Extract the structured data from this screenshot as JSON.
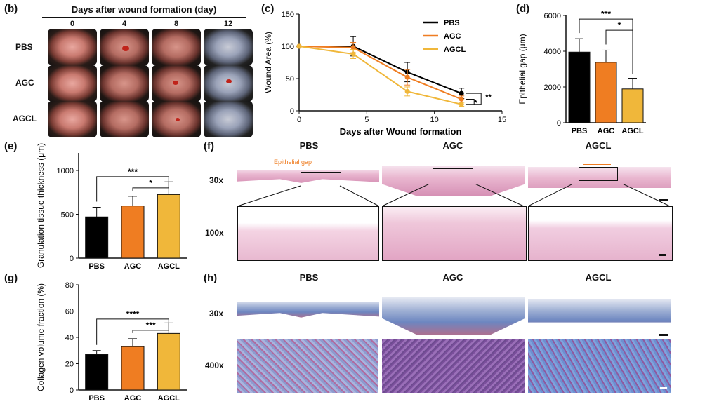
{
  "panels": {
    "b": {
      "label": "(b)",
      "title": "Days after wound formation (day)",
      "days": [
        "0",
        "4",
        "8",
        "12"
      ],
      "groups": [
        "PBS",
        "AGC",
        "AGCL"
      ]
    },
    "f": {
      "label": "(f)",
      "groups": [
        "PBS",
        "AGC",
        "AGCL"
      ],
      "rows": [
        "30x",
        "100x"
      ],
      "annotation": "Epithelial gap"
    },
    "h": {
      "label": "(h)",
      "groups": [
        "PBS",
        "AGC",
        "AGCL"
      ],
      "rows": [
        "30x",
        "400x"
      ]
    }
  },
  "colors": {
    "PBS": "#000000",
    "AGC": "#ef7d22",
    "AGCL": "#f0b73a"
  },
  "chart_data": [
    {
      "id": "c",
      "panel_label": "(c)",
      "type": "line",
      "xlabel": "Days after Wound formation",
      "ylabel": "Wound Area (%)",
      "xlim": [
        0,
        15
      ],
      "ylim": [
        0,
        150
      ],
      "xticks": [
        "0",
        "5",
        "10",
        "15"
      ],
      "yticks": [
        "0",
        "50",
        "100",
        "150"
      ],
      "x": [
        0,
        4,
        8,
        12
      ],
      "series": [
        {
          "name": "PBS",
          "values": [
            100,
            100,
            60,
            27
          ],
          "errors": [
            0,
            15,
            15,
            8
          ]
        },
        {
          "name": "AGC",
          "values": [
            100,
            98,
            52,
            18
          ],
          "errors": [
            0,
            8,
            12,
            5
          ]
        },
        {
          "name": "AGCL",
          "values": [
            100,
            88,
            30,
            10
          ],
          "errors": [
            0,
            7,
            7,
            3
          ]
        }
      ],
      "significance": [
        "*",
        "**"
      ]
    },
    {
      "id": "d",
      "panel_label": "(d)",
      "type": "bar",
      "ylabel": "Epithelial gap (μm)",
      "categories": [
        "PBS",
        "AGC",
        "AGCL"
      ],
      "values": [
        3950,
        3380,
        1890
      ],
      "errors": [
        750,
        680,
        600
      ],
      "ylim": [
        0,
        6000
      ],
      "yticks": [
        "0",
        "2000",
        "4000",
        "6000"
      ],
      "significance": [
        "***",
        "*"
      ]
    },
    {
      "id": "e",
      "panel_label": "(e)",
      "type": "bar",
      "ylabel": "Granulation tissue thickness (μm)",
      "categories": [
        "PBS",
        "AGC",
        "AGCL"
      ],
      "values": [
        470,
        595,
        725
      ],
      "errors": [
        110,
        110,
        145
      ],
      "ylim": [
        0,
        1200
      ],
      "yticks": [
        "0",
        "500",
        "1000"
      ],
      "significance": [
        "***",
        "*"
      ]
    },
    {
      "id": "g",
      "panel_label": "(g)",
      "type": "bar",
      "ylabel": "Collagen volume fraction (%)",
      "categories": [
        "PBS",
        "AGC",
        "AGCL"
      ],
      "values": [
        27,
        33,
        43
      ],
      "errors": [
        3,
        6,
        8
      ],
      "ylim": [
        0,
        80
      ],
      "yticks": [
        "0",
        "20",
        "40",
        "60",
        "80"
      ],
      "significance": [
        "****",
        "***"
      ]
    }
  ]
}
